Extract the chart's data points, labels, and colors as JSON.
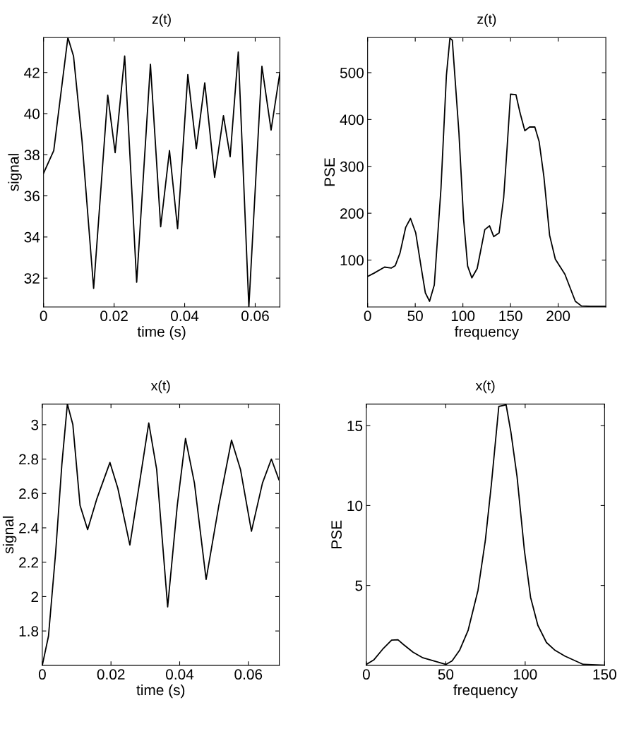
{
  "chart_data": [
    {
      "type": "line",
      "title": "z(t)",
      "xlabel": "time (s)",
      "ylabel": "signal",
      "color": "#000000",
      "xlim": [
        0,
        0.067
      ],
      "ylim": [
        30.6,
        43.7
      ],
      "xticks": [
        0,
        0.02,
        0.04,
        0.06
      ],
      "yticks": [
        32,
        34,
        36,
        38,
        40,
        42
      ],
      "x": [
        0,
        0.0029,
        0.0069,
        0.0085,
        0.0109,
        0.0142,
        0.0182,
        0.0203,
        0.023,
        0.0264,
        0.0303,
        0.0332,
        0.0357,
        0.038,
        0.0409,
        0.0433,
        0.0457,
        0.0485,
        0.051,
        0.0529,
        0.0552,
        0.0582,
        0.0619,
        0.0645,
        0.067
      ],
      "values": [
        37.1,
        38.2,
        43.7,
        42.8,
        38.7,
        31.5,
        40.9,
        38.1,
        42.8,
        31.8,
        42.4,
        34.5,
        38.2,
        34.4,
        41.9,
        38.3,
        41.5,
        36.9,
        39.9,
        37.9,
        43.0,
        30.6,
        42.3,
        39.2,
        42.0
      ]
    },
    {
      "type": "line",
      "title": "z(t)",
      "xlabel": "frequency",
      "ylabel": "PSE",
      "color": "#000000",
      "xlim": [
        0,
        250
      ],
      "ylim": [
        0,
        575
      ],
      "xticks": [
        0,
        50,
        100,
        150,
        200
      ],
      "yticks": [
        100,
        200,
        300,
        400,
        500
      ],
      "x": [
        0,
        6.7,
        17.8,
        25,
        29,
        34,
        40,
        45,
        50.5,
        56,
        60.6,
        65,
        70,
        77,
        82.7,
        86.4,
        88.9,
        95.8,
        100.7,
        105,
        109.4,
        115,
        123,
        128,
        132.4,
        138,
        142.8,
        146.5,
        150,
        155.7,
        160,
        165,
        170,
        175.5,
        180,
        185,
        191,
        197,
        207,
        218,
        224.5,
        234,
        250
      ],
      "values": [
        65,
        72,
        85,
        83,
        88,
        115,
        170,
        189,
        158,
        87,
        30,
        12,
        47,
        253,
        494,
        574,
        569,
        373,
        188,
        87,
        62,
        82,
        165,
        173,
        150,
        158,
        233,
        343,
        454,
        453,
        414,
        376,
        384,
        384,
        353,
        278,
        153,
        102,
        70,
        12,
        2,
        1,
        1
      ]
    },
    {
      "type": "line",
      "title": "x(t)",
      "xlabel": "time (s)",
      "ylabel": "signal",
      "color": "#000000",
      "xlim": [
        0,
        0.069
      ],
      "ylim": [
        1.6,
        3.12
      ],
      "xticks": [
        0,
        0.02,
        0.04,
        0.06
      ],
      "yticks": [
        1.8,
        2,
        2.2,
        2.4,
        2.6,
        2.8,
        3
      ],
      "x": [
        0,
        0.0018,
        0.0039,
        0.0057,
        0.0073,
        0.0089,
        0.011,
        0.0132,
        0.0159,
        0.0197,
        0.022,
        0.0255,
        0.0283,
        0.031,
        0.0333,
        0.0365,
        0.0393,
        0.0417,
        0.0443,
        0.0477,
        0.0514,
        0.0551,
        0.0577,
        0.0609,
        0.0641,
        0.0667,
        0.0689
      ],
      "values": [
        1.6,
        1.77,
        2.26,
        2.77,
        3.12,
        3.0,
        2.53,
        2.39,
        2.57,
        2.78,
        2.63,
        2.3,
        2.66,
        3.01,
        2.74,
        1.94,
        2.53,
        2.92,
        2.66,
        2.1,
        2.53,
        2.91,
        2.74,
        2.38,
        2.66,
        2.8,
        2.68
      ]
    },
    {
      "type": "line",
      "title": "x(t)",
      "xlabel": "frequency",
      "ylabel": "PSE",
      "color": "#000000",
      "xlim": [
        0,
        150
      ],
      "ylim": [
        0,
        16.35
      ],
      "xticks": [
        0,
        50,
        100,
        150
      ],
      "yticks": [
        5,
        10,
        15
      ],
      "x": [
        0,
        4.8,
        10.2,
        15.9,
        19.9,
        23.3,
        29.4,
        35.6,
        43.3,
        50.2,
        54,
        58.7,
        64.1,
        70.3,
        74.9,
        78.7,
        83.4,
        88,
        91,
        94.9,
        99.5,
        103.4,
        108,
        113.4,
        118.8,
        125,
        136.5,
        150
      ],
      "values": [
        0.06,
        0.35,
        1.0,
        1.58,
        1.6,
        1.31,
        0.82,
        0.47,
        0.25,
        0.06,
        0.28,
        0.94,
        2.2,
        4.7,
        7.8,
        11.3,
        16.2,
        16.3,
        14.6,
        11.8,
        7.2,
        4.26,
        2.5,
        1.43,
        0.94,
        0.58,
        0.06,
        0.01
      ]
    }
  ]
}
